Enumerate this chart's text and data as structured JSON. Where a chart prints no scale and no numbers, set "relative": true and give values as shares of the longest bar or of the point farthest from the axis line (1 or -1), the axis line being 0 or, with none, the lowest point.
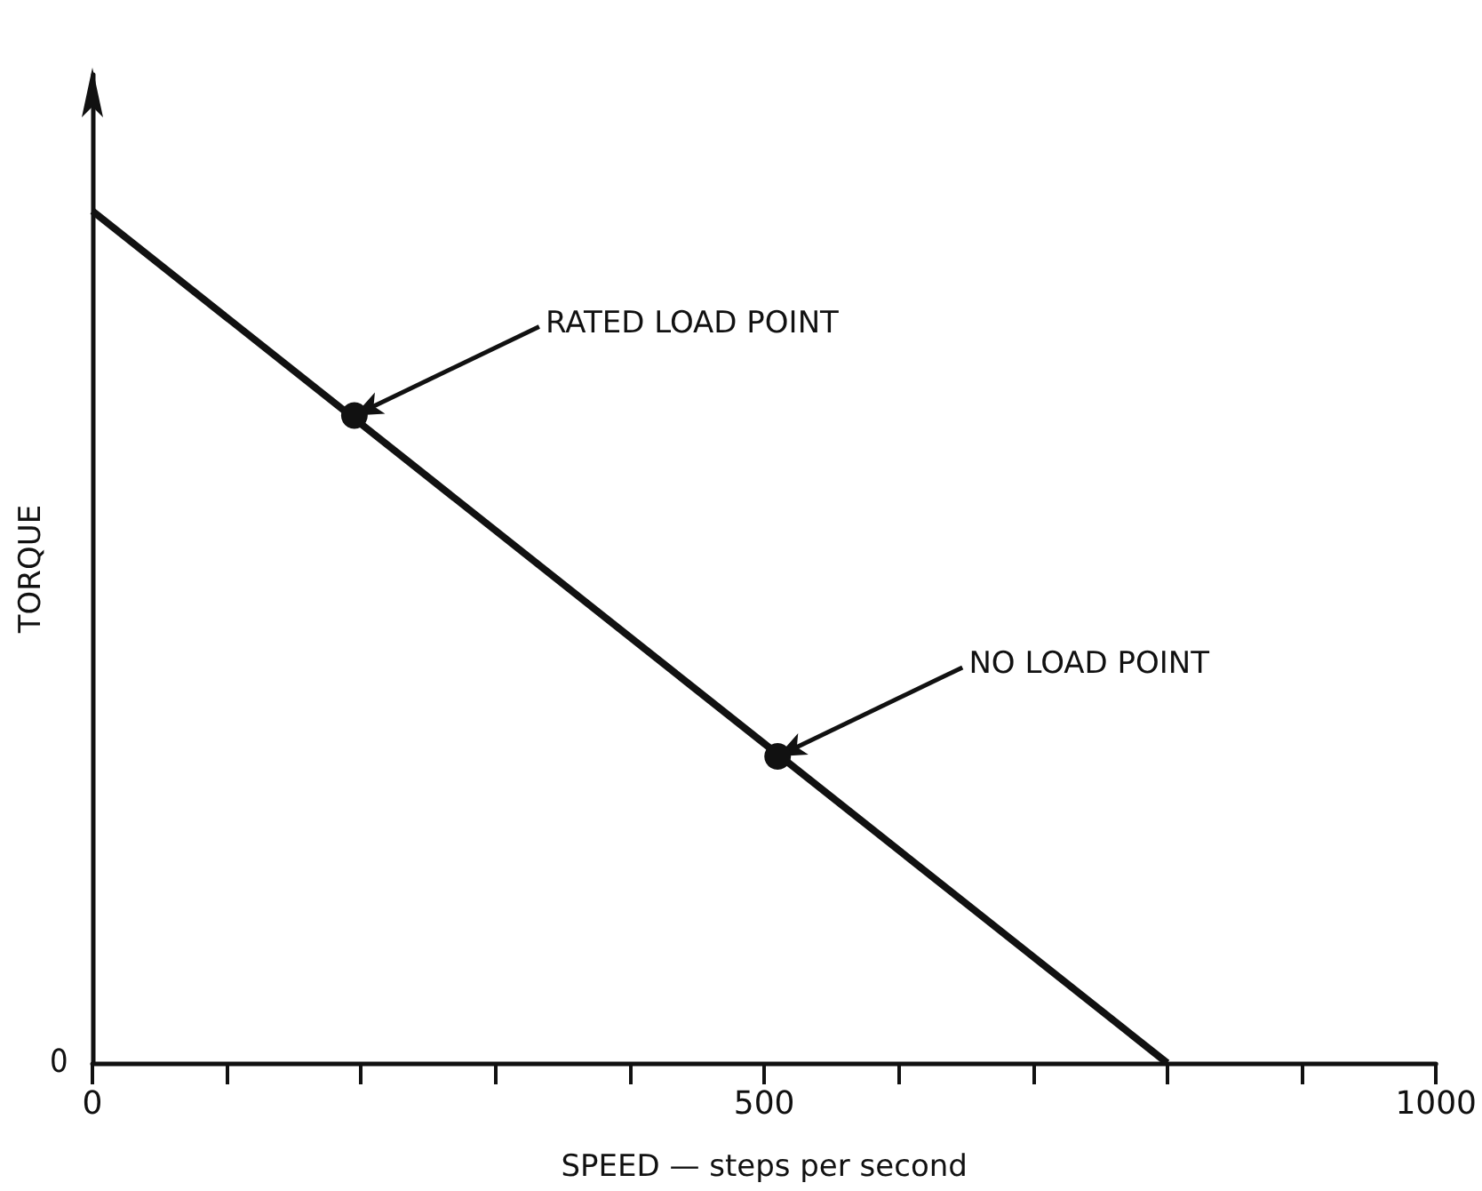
{
  "chart_data": {
    "type": "line",
    "xlabel": "SPEED — steps per second",
    "ylabel": "TORQUE",
    "relative": true,
    "xlim": [
      0,
      1000
    ],
    "xticks": [
      0,
      {
        "value": 100,
        "label": null
      },
      {
        "value": 200,
        "label": null
      },
      {
        "value": 300,
        "label": null
      },
      {
        "value": 400,
        "label": null
      },
      500,
      {
        "value": 600,
        "label": null
      },
      {
        "value": 700,
        "label": null
      },
      {
        "value": 800,
        "label": null
      },
      {
        "value": 900,
        "label": null
      },
      1000
    ],
    "series": [
      {
        "type": "line",
        "color": "#111111",
        "marker": "none",
        "x": [
          0,
          800
        ],
        "values": [
          1,
          0
        ]
      },
      {
        "type": "scatter",
        "color": "#111111",
        "marker": "circle",
        "x": [
          195,
          510
        ],
        "values": [
          0.76,
          0.36
        ]
      }
    ],
    "grid": false,
    "annotations": [
      {
        "text": "RATED LOAD POINT",
        "x": 195,
        "y": 0.76
      },
      {
        "text": "NO LOAD POINT",
        "x": 510,
        "y": 0.36
      },
      "0"
    ]
  }
}
